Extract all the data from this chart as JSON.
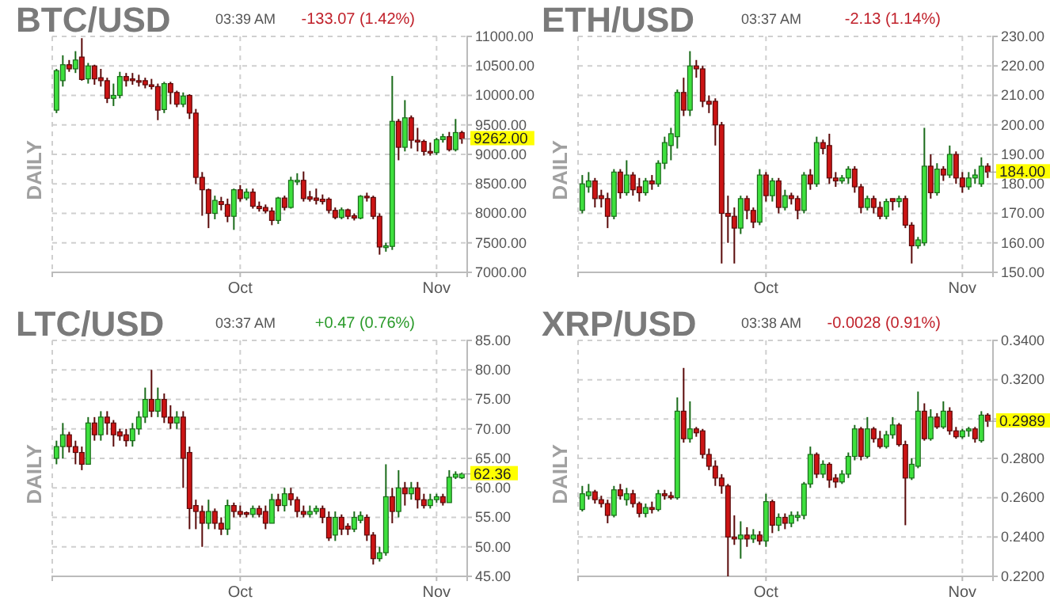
{
  "chart_data": [
    {
      "type": "candlestick",
      "title": "BTC/USD",
      "ylabel": "DAILY",
      "annotations": [
        "03:39 AM",
        "-133.07 (1.42%)",
        {
          "text": "9262.00",
          "x": "--11-05",
          "y": 9262
        }
      ],
      "grid": true,
      "xlim": [
        "--09-01T08:00",
        "--11-05T20:00"
      ],
      "xticks": [
        {
          "value": "--10-01",
          "label": "Oct"
        },
        {
          "value": "--11-01",
          "label": "Nov"
        }
      ],
      "ylim": [
        7000,
        11000
      ],
      "yticks": [
        {
          "value": 7000,
          "label": "7000.00"
        },
        {
          "value": 7500,
          "label": "7500.00"
        },
        {
          "value": 8000,
          "label": "8000.00"
        },
        {
          "value": 8500,
          "label": "8500.00"
        },
        {
          "value": 9000,
          "label": "9000.00"
        },
        {
          "value": 9500,
          "label": "9500.00"
        },
        {
          "value": 10000,
          "label": "10000.00"
        },
        {
          "value": 10500,
          "label": "10500.00"
        },
        {
          "value": 11000,
          "label": "11000.00"
        }
      ],
      "x": [
        "--09-02",
        "--09-03",
        "--09-04",
        "--09-05",
        "--09-06",
        "--09-07",
        "--09-08",
        "--09-09",
        "--09-10",
        "--09-11",
        "--09-12",
        "--09-13",
        "--09-14",
        "--09-15",
        "--09-16",
        "--09-17",
        "--09-18",
        "--09-19",
        "--09-20",
        "--09-21",
        "--09-22",
        "--09-23",
        "--09-24",
        "--09-25",
        "--09-26",
        "--09-27",
        "--09-28",
        "--09-29",
        "--09-30",
        "--10-01",
        "--10-02",
        "--10-03",
        "--10-04",
        "--10-05",
        "--10-06",
        "--10-07",
        "--10-08",
        "--10-09",
        "--10-10",
        "--10-11",
        "--10-12",
        "--10-13",
        "--10-14",
        "--10-15",
        "--10-16",
        "--10-17",
        "--10-18",
        "--10-19",
        "--10-20",
        "--10-21",
        "--10-22",
        "--10-23",
        "--10-24",
        "--10-25",
        "--10-26",
        "--10-27",
        "--10-28",
        "--10-29",
        "--10-30",
        "--10-31",
        "--11-01",
        "--11-02",
        "--11-03",
        "--11-04",
        "--11-05"
      ],
      "ohlc": [
        [
          9750,
          10450,
          9700,
          10420
        ],
        [
          10250,
          10680,
          10150,
          10520
        ],
        [
          10520,
          10600,
          10400,
          10450
        ],
        [
          10450,
          10750,
          10380,
          10600
        ],
        [
          10650,
          10970,
          10250,
          10270
        ],
        [
          10280,
          10550,
          10200,
          10500
        ],
        [
          10500,
          10520,
          10180,
          10280
        ],
        [
          10300,
          10450,
          10150,
          10250
        ],
        [
          10250,
          10300,
          9870,
          9950
        ],
        [
          9950,
          10200,
          9820,
          10000
        ],
        [
          10000,
          10400,
          9950,
          10320
        ],
        [
          10320,
          10380,
          10150,
          10250
        ],
        [
          10280,
          10380,
          10180,
          10250
        ],
        [
          10250,
          10350,
          10150,
          10240
        ],
        [
          10250,
          10300,
          10120,
          10180
        ],
        [
          10180,
          10280,
          10100,
          10150
        ],
        [
          10150,
          10200,
          9580,
          9750
        ],
        [
          9760,
          10230,
          9700,
          10200
        ],
        [
          10200,
          10230,
          9850,
          10050
        ],
        [
          10050,
          10080,
          9800,
          9850
        ],
        [
          9850,
          10050,
          9800,
          9990
        ],
        [
          10000,
          10020,
          9600,
          9700
        ],
        [
          9700,
          9770,
          8500,
          8610
        ],
        [
          8610,
          8700,
          7960,
          8400
        ],
        [
          8400,
          8420,
          7750,
          8000
        ],
        [
          8000,
          8300,
          7900,
          8220
        ],
        [
          8200,
          8280,
          8050,
          8150
        ],
        [
          8150,
          8250,
          7850,
          7950
        ],
        [
          7950,
          8420,
          7720,
          8400
        ],
        [
          8400,
          8480,
          8200,
          8250
        ],
        [
          8260,
          8420,
          8220,
          8360
        ],
        [
          8360,
          8420,
          8080,
          8120
        ],
        [
          8120,
          8200,
          8030,
          8080
        ],
        [
          8100,
          8150,
          8000,
          8040
        ],
        [
          8040,
          8100,
          7800,
          7880
        ],
        [
          7880,
          8280,
          7820,
          8260
        ],
        [
          8260,
          8300,
          8050,
          8100
        ],
        [
          8100,
          8620,
          8080,
          8560
        ],
        [
          8540,
          8680,
          8480,
          8560
        ],
        [
          8560,
          8710,
          8200,
          8250
        ],
        [
          8280,
          8380,
          8200,
          8240
        ],
        [
          8260,
          8420,
          8150,
          8220
        ],
        [
          8240,
          8320,
          8150,
          8200
        ],
        [
          8240,
          8270,
          8000,
          8050
        ],
        [
          8050,
          8100,
          7900,
          7930
        ],
        [
          7930,
          8100,
          7900,
          8060
        ],
        [
          8060,
          8080,
          7900,
          7950
        ],
        [
          7960,
          8000,
          7880,
          7920
        ],
        [
          7920,
          8310,
          7900,
          8290
        ],
        [
          8290,
          8350,
          8200,
          8270
        ],
        [
          8270,
          8300,
          7900,
          7950
        ],
        [
          7950,
          8000,
          7300,
          7430
        ],
        [
          7420,
          7500,
          7350,
          7450
        ],
        [
          7440,
          10330,
          7380,
          9560
        ],
        [
          9560,
          9600,
          8900,
          9120
        ],
        [
          9120,
          9920,
          9050,
          9620
        ],
        [
          9620,
          9660,
          9100,
          9240
        ],
        [
          9240,
          9450,
          9050,
          9210
        ],
        [
          9220,
          9250,
          8980,
          9050
        ],
        [
          9050,
          9200,
          8980,
          9030
        ],
        [
          9030,
          9280,
          8990,
          9250
        ],
        [
          9250,
          9350,
          9200,
          9300
        ],
        [
          9300,
          9380,
          9050,
          9080
        ],
        [
          9080,
          9600,
          9050,
          9370
        ],
        [
          9370,
          9400,
          9180,
          9262
        ]
      ]
    },
    {
      "type": "candlestick",
      "title": "ETH/USD",
      "ylabel": "DAILY",
      "annotations": [
        "03:37 AM",
        "-2.13 (1.14%)",
        {
          "text": "184.00",
          "x": "--11-05",
          "y": 184
        }
      ],
      "grid": true,
      "xlim": [
        "--09-01T08:00",
        "--11-05T20:00"
      ],
      "xticks": [
        {
          "value": "--10-01",
          "label": "Oct"
        },
        {
          "value": "--11-01",
          "label": "Nov"
        }
      ],
      "ylim": [
        150,
        230
      ],
      "yticks": [
        {
          "value": 150,
          "label": "150.00"
        },
        {
          "value": 160,
          "label": "160.00"
        },
        {
          "value": 170,
          "label": "170.00"
        },
        {
          "value": 180,
          "label": "180.00"
        },
        {
          "value": 190,
          "label": "190.00"
        },
        {
          "value": 200,
          "label": "200.00"
        },
        {
          "value": 210,
          "label": "210.00"
        },
        {
          "value": 220,
          "label": "220.00"
        },
        {
          "value": 230,
          "label": "230.00"
        }
      ],
      "x": [
        "--09-02",
        "--09-03",
        "--09-04",
        "--09-05",
        "--09-06",
        "--09-07",
        "--09-08",
        "--09-09",
        "--09-10",
        "--09-11",
        "--09-12",
        "--09-13",
        "--09-14",
        "--09-15",
        "--09-16",
        "--09-17",
        "--09-18",
        "--09-19",
        "--09-20",
        "--09-21",
        "--09-22",
        "--09-23",
        "--09-24",
        "--09-25",
        "--09-26",
        "--09-27",
        "--09-28",
        "--09-29",
        "--09-30",
        "--10-01",
        "--10-02",
        "--10-03",
        "--10-04",
        "--10-05",
        "--10-06",
        "--10-07",
        "--10-08",
        "--10-09",
        "--10-10",
        "--10-11",
        "--10-12",
        "--10-13",
        "--10-14",
        "--10-15",
        "--10-16",
        "--10-17",
        "--10-18",
        "--10-19",
        "--10-20",
        "--10-21",
        "--10-22",
        "--10-23",
        "--10-24",
        "--10-25",
        "--10-26",
        "--10-27",
        "--10-28",
        "--10-29",
        "--10-30",
        "--10-31",
        "--11-01",
        "--11-02",
        "--11-03",
        "--11-04",
        "--11-05"
      ],
      "ohlc": [
        [
          171,
          183,
          170,
          180
        ],
        [
          179,
          184,
          177,
          181
        ],
        [
          181,
          182,
          172,
          175
        ],
        [
          176,
          178,
          172,
          175
        ],
        [
          175,
          177,
          165,
          169
        ],
        [
          169,
          185,
          168,
          184
        ],
        [
          184,
          185,
          175,
          177
        ],
        [
          177,
          188,
          176,
          183
        ],
        [
          183,
          184,
          176,
          178
        ],
        [
          179,
          182,
          174,
          177
        ],
        [
          177,
          182,
          176,
          181
        ],
        [
          181,
          183,
          178,
          180
        ],
        [
          180,
          188,
          179,
          187
        ],
        [
          187,
          196,
          185,
          194
        ],
        [
          193,
          199,
          188,
          197
        ],
        [
          196,
          212,
          192,
          211
        ],
        [
          211,
          216,
          203,
          205
        ],
        [
          205,
          225,
          203,
          220
        ],
        [
          220,
          222,
          216,
          219
        ],
        [
          219,
          220,
          206,
          208
        ],
        [
          208,
          210,
          204,
          207
        ],
        [
          208,
          209,
          193,
          200
        ],
        [
          200,
          201,
          153,
          170
        ],
        [
          170,
          176,
          160,
          169
        ],
        [
          169,
          172,
          153,
          165
        ],
        [
          165,
          176,
          163,
          175
        ],
        [
          175,
          176,
          168,
          171
        ],
        [
          171,
          172,
          165,
          167
        ],
        [
          167,
          185,
          166,
          183
        ],
        [
          183,
          184,
          174,
          176
        ],
        [
          176,
          182,
          174,
          181
        ],
        [
          181,
          182,
          170,
          172
        ],
        [
          172,
          178,
          171,
          176
        ],
        [
          176,
          177,
          173,
          175
        ],
        [
          175,
          176,
          168,
          171
        ],
        [
          171,
          184,
          170,
          183
        ],
        [
          183,
          185,
          178,
          180
        ],
        [
          180,
          196,
          179,
          194
        ],
        [
          194,
          195,
          190,
          192
        ],
        [
          193,
          197,
          180,
          182
        ],
        [
          182,
          184,
          179,
          181
        ],
        [
          181,
          183,
          180,
          182
        ],
        [
          182,
          186,
          180,
          185
        ],
        [
          185,
          186,
          177,
          179
        ],
        [
          179,
          180,
          170,
          172
        ],
        [
          172,
          176,
          171,
          175
        ],
        [
          175,
          176,
          170,
          172
        ],
        [
          172,
          174,
          168,
          169
        ],
        [
          169,
          175,
          168,
          174
        ],
        [
          175,
          175,
          171,
          174
        ],
        [
          174,
          176,
          172,
          175
        ],
        [
          175,
          176,
          165,
          166
        ],
        [
          166,
          167,
          153,
          159
        ],
        [
          159,
          162,
          158,
          161
        ],
        [
          160,
          199,
          159,
          186
        ],
        [
          186,
          190,
          175,
          177
        ],
        [
          177,
          187,
          176,
          185
        ],
        [
          185,
          186,
          181,
          183
        ],
        [
          183,
          193,
          182,
          190
        ],
        [
          190,
          191,
          180,
          182
        ],
        [
          182,
          184,
          177,
          179
        ],
        [
          179,
          184,
          178,
          182
        ],
        [
          182,
          185,
          180,
          183
        ],
        [
          180,
          189,
          179,
          186
        ],
        [
          186,
          187,
          182,
          184
        ]
      ]
    },
    {
      "type": "candlestick",
      "title": "LTC/USD",
      "ylabel": "DAILY",
      "annotations": [
        "03:37 AM",
        "+0.47 (0.76%)",
        {
          "text": "62.36",
          "x": "--11-05",
          "y": 62.36
        }
      ],
      "grid": true,
      "xlim": [
        "--09-01T08:00",
        "--11-05T20:00"
      ],
      "xticks": [
        {
          "value": "--10-01",
          "label": "Oct"
        },
        {
          "value": "--11-01",
          "label": "Nov"
        }
      ],
      "ylim": [
        45,
        85
      ],
      "yticks": [
        {
          "value": 45,
          "label": "45.00"
        },
        {
          "value": 50,
          "label": "50.00"
        },
        {
          "value": 55,
          "label": "55.00"
        },
        {
          "value": 60,
          "label": "60.00"
        },
        {
          "value": 65,
          "label": "65.00"
        },
        {
          "value": 70,
          "label": "70.00"
        },
        {
          "value": 75,
          "label": "75.00"
        },
        {
          "value": 80,
          "label": "80.00"
        },
        {
          "value": 85,
          "label": "85.00"
        }
      ],
      "x": [
        "--09-02",
        "--09-03",
        "--09-04",
        "--09-05",
        "--09-06",
        "--09-07",
        "--09-08",
        "--09-09",
        "--09-10",
        "--09-11",
        "--09-12",
        "--09-13",
        "--09-14",
        "--09-15",
        "--09-16",
        "--09-17",
        "--09-18",
        "--09-19",
        "--09-20",
        "--09-21",
        "--09-22",
        "--09-23",
        "--09-24",
        "--09-25",
        "--09-26",
        "--09-27",
        "--09-28",
        "--09-29",
        "--09-30",
        "--10-01",
        "--10-02",
        "--10-03",
        "--10-04",
        "--10-05",
        "--10-06",
        "--10-07",
        "--10-08",
        "--10-09",
        "--10-10",
        "--10-11",
        "--10-12",
        "--10-13",
        "--10-14",
        "--10-15",
        "--10-16",
        "--10-17",
        "--10-18",
        "--10-19",
        "--10-20",
        "--10-21",
        "--10-22",
        "--10-23",
        "--10-24",
        "--10-25",
        "--10-26",
        "--10-27",
        "--10-28",
        "--10-29",
        "--10-30",
        "--10-31",
        "--11-01",
        "--11-02",
        "--11-03",
        "--11-04",
        "--11-05"
      ],
      "ohlc": [
        [
          65,
          68,
          64,
          67
        ],
        [
          67,
          71,
          65,
          69
        ],
        [
          69,
          69.5,
          66,
          67
        ],
        [
          67,
          68,
          64,
          66
        ],
        [
          66,
          67,
          63,
          64
        ],
        [
          64,
          72,
          64,
          71
        ],
        [
          71,
          72,
          68,
          69
        ],
        [
          69,
          73,
          68,
          72
        ],
        [
          72,
          73,
          69,
          71
        ],
        [
          71,
          71.5,
          67,
          69
        ],
        [
          69.5,
          70,
          68,
          68.8
        ],
        [
          69,
          70,
          67,
          68
        ],
        [
          68,
          71,
          67,
          70
        ],
        [
          70,
          73,
          69,
          72
        ],
        [
          72,
          77,
          71,
          75
        ],
        [
          75,
          80,
          72,
          73
        ],
        [
          73,
          77,
          72,
          75
        ],
        [
          75,
          76,
          71,
          72
        ],
        [
          72,
          74,
          70,
          71
        ],
        [
          71,
          73,
          70,
          72
        ],
        [
          72,
          73,
          60,
          65
        ],
        [
          66,
          67,
          53,
          56.5
        ],
        [
          57,
          58,
          53,
          56
        ],
        [
          56,
          57,
          50,
          54
        ],
        [
          54,
          58,
          53,
          56
        ],
        [
          56,
          56.5,
          53,
          54
        ],
        [
          54,
          55,
          52,
          53
        ],
        [
          53,
          58,
          52,
          57
        ],
        [
          57,
          57.5,
          55,
          56
        ],
        [
          56,
          57,
          55,
          55.5
        ],
        [
          55.8,
          56,
          55,
          55.5
        ],
        [
          55.5,
          57,
          55,
          56.5
        ],
        [
          56.5,
          57,
          55,
          55.5
        ],
        [
          56,
          57,
          53,
          54
        ],
        [
          54,
          59,
          54,
          58
        ],
        [
          58,
          59,
          56,
          57
        ],
        [
          57,
          60,
          56,
          59
        ],
        [
          59,
          60,
          57,
          58
        ],
        [
          58,
          58.5,
          55,
          56
        ],
        [
          56,
          57,
          55,
          55.5
        ],
        [
          55.5,
          57,
          55,
          56
        ],
        [
          56,
          57,
          55.5,
          56.5
        ],
        [
          56.5,
          57,
          54,
          55
        ],
        [
          55,
          56,
          51,
          51.5
        ],
        [
          52,
          56,
          51,
          55
        ],
        [
          55,
          55.5,
          52,
          53
        ],
        [
          53.5,
          54,
          52,
          53
        ],
        [
          53,
          56,
          52.5,
          55
        ],
        [
          54.5,
          56,
          54,
          55.3
        ],
        [
          55,
          55.5,
          51,
          52
        ],
        [
          52,
          52.5,
          47,
          48
        ],
        [
          48,
          50,
          47.5,
          49
        ],
        [
          49,
          64,
          48.5,
          58.5
        ],
        [
          58.5,
          60,
          54,
          56
        ],
        [
          56,
          63,
          55,
          60
        ],
        [
          60,
          61,
          57,
          59
        ],
        [
          59,
          61,
          58,
          60
        ],
        [
          60,
          61,
          56.5,
          58
        ],
        [
          58,
          59,
          56.5,
          57
        ],
        [
          57,
          59,
          56.5,
          58
        ],
        [
          58,
          59,
          57.5,
          58.5
        ],
        [
          58.5,
          59,
          57,
          57.5
        ],
        [
          57.5,
          63,
          57.5,
          61.8
        ],
        [
          61.8,
          62.8,
          61.5,
          62.3
        ],
        [
          61.7,
          62.6,
          61.5,
          62.36
        ]
      ]
    },
    {
      "type": "candlestick",
      "title": "XRP/USD",
      "ylabel": "DAILY",
      "annotations": [
        "03:38 AM",
        "-0.0028 (0.91%)",
        {
          "text": "0.2989",
          "x": "--11-05",
          "y": 0.2989
        }
      ],
      "grid": true,
      "xlim": [
        "--09-01T08:00",
        "--11-05T20:00"
      ],
      "xticks": [
        {
          "value": "--10-01",
          "label": "Oct"
        },
        {
          "value": "--11-01",
          "label": "Nov"
        }
      ],
      "ylim": [
        0.22,
        0.34
      ],
      "yticks": [
        {
          "value": 0.22,
          "label": "0.2200"
        },
        {
          "value": 0.24,
          "label": "0.2400"
        },
        {
          "value": 0.26,
          "label": "0.2600"
        },
        {
          "value": 0.28,
          "label": "0.2800"
        },
        {
          "value": 0.3,
          "label": null
        },
        {
          "value": 0.32,
          "label": "0.3200"
        },
        {
          "value": 0.34,
          "label": "0.3400"
        }
      ],
      "x": [
        "--09-02",
        "--09-03",
        "--09-04",
        "--09-05",
        "--09-06",
        "--09-07",
        "--09-08",
        "--09-09",
        "--09-10",
        "--09-11",
        "--09-12",
        "--09-13",
        "--09-14",
        "--09-15",
        "--09-16",
        "--09-17",
        "--09-18",
        "--09-19",
        "--09-20",
        "--09-21",
        "--09-22",
        "--09-23",
        "--09-24",
        "--09-25",
        "--09-26",
        "--09-27",
        "--09-28",
        "--09-29",
        "--09-30",
        "--10-01",
        "--10-02",
        "--10-03",
        "--10-04",
        "--10-05",
        "--10-06",
        "--10-07",
        "--10-08",
        "--10-09",
        "--10-10",
        "--10-11",
        "--10-12",
        "--10-13",
        "--10-14",
        "--10-15",
        "--10-16",
        "--10-17",
        "--10-18",
        "--10-19",
        "--10-20",
        "--10-21",
        "--10-22",
        "--10-23",
        "--10-24",
        "--10-25",
        "--10-26",
        "--10-27",
        "--10-28",
        "--10-29",
        "--10-30",
        "--10-31",
        "--11-01",
        "--11-02",
        "--11-03",
        "--11-04",
        "--11-05"
      ],
      "ohlc": [
        [
          0.254,
          0.266,
          0.253,
          0.262
        ],
        [
          0.261,
          0.267,
          0.259,
          0.263
        ],
        [
          0.263,
          0.264,
          0.257,
          0.259
        ],
        [
          0.259,
          0.261,
          0.255,
          0.257
        ],
        [
          0.257,
          0.259,
          0.247,
          0.251
        ],
        [
          0.251,
          0.266,
          0.25,
          0.264
        ],
        [
          0.264,
          0.267,
          0.259,
          0.261
        ],
        [
          0.259,
          0.265,
          0.256,
          0.262
        ],
        [
          0.262,
          0.264,
          0.255,
          0.257
        ],
        [
          0.257,
          0.258,
          0.25,
          0.252
        ],
        [
          0.252,
          0.257,
          0.25,
          0.255
        ],
        [
          0.255,
          0.258,
          0.252,
          0.254
        ],
        [
          0.254,
          0.264,
          0.253,
          0.262
        ],
        [
          0.262,
          0.264,
          0.259,
          0.261
        ],
        [
          0.261,
          0.263,
          0.259,
          0.26
        ],
        [
          0.26,
          0.311,
          0.259,
          0.304
        ],
        [
          0.304,
          0.326,
          0.288,
          0.29
        ],
        [
          0.29,
          0.309,
          0.288,
          0.295
        ],
        [
          0.295,
          0.296,
          0.291,
          0.293
        ],
        [
          0.294,
          0.295,
          0.28,
          0.282
        ],
        [
          0.282,
          0.285,
          0.274,
          0.276
        ],
        [
          0.276,
          0.279,
          0.266,
          0.27
        ],
        [
          0.27,
          0.272,
          0.262,
          0.266
        ],
        [
          0.266,
          0.267,
          0.22,
          0.24
        ],
        [
          0.24,
          0.251,
          0.236,
          0.239
        ],
        [
          0.239,
          0.248,
          0.229,
          0.241
        ],
        [
          0.241,
          0.245,
          0.235,
          0.239
        ],
        [
          0.239,
          0.244,
          0.237,
          0.241
        ],
        [
          0.241,
          0.243,
          0.236,
          0.238
        ],
        [
          0.238,
          0.262,
          0.235,
          0.258
        ],
        [
          0.258,
          0.259,
          0.242,
          0.246
        ],
        [
          0.246,
          0.252,
          0.243,
          0.25
        ],
        [
          0.25,
          0.252,
          0.244,
          0.247
        ],
        [
          0.247,
          0.253,
          0.245,
          0.251
        ],
        [
          0.25,
          0.253,
          0.248,
          0.251
        ],
        [
          0.251,
          0.268,
          0.249,
          0.267
        ],
        [
          0.267,
          0.286,
          0.265,
          0.282
        ],
        [
          0.282,
          0.283,
          0.27,
          0.272
        ],
        [
          0.272,
          0.279,
          0.27,
          0.277
        ],
        [
          0.277,
          0.278,
          0.265,
          0.269
        ],
        [
          0.27,
          0.272,
          0.265,
          0.268
        ],
        [
          0.268,
          0.274,
          0.267,
          0.272
        ],
        [
          0.272,
          0.283,
          0.27,
          0.281
        ],
        [
          0.281,
          0.297,
          0.279,
          0.295
        ],
        [
          0.295,
          0.296,
          0.279,
          0.281
        ],
        [
          0.281,
          0.301,
          0.28,
          0.295
        ],
        [
          0.295,
          0.296,
          0.288,
          0.29
        ],
        [
          0.29,
          0.294,
          0.285,
          0.286
        ],
        [
          0.286,
          0.294,
          0.285,
          0.292
        ],
        [
          0.292,
          0.301,
          0.29,
          0.297
        ],
        [
          0.297,
          0.298,
          0.286,
          0.287
        ],
        [
          0.287,
          0.289,
          0.246,
          0.27
        ],
        [
          0.27,
          0.28,
          0.269,
          0.277
        ],
        [
          0.276,
          0.314,
          0.275,
          0.304
        ],
        [
          0.304,
          0.308,
          0.289,
          0.29
        ],
        [
          0.29,
          0.305,
          0.289,
          0.301
        ],
        [
          0.301,
          0.303,
          0.295,
          0.296
        ],
        [
          0.296,
          0.309,
          0.295,
          0.304
        ],
        [
          0.304,
          0.306,
          0.292,
          0.294
        ],
        [
          0.294,
          0.296,
          0.29,
          0.291
        ],
        [
          0.291,
          0.295,
          0.29,
          0.294
        ],
        [
          0.294,
          0.296,
          0.291,
          0.295
        ],
        [
          0.295,
          0.296,
          0.288,
          0.29
        ],
        [
          0.289,
          0.304,
          0.288,
          0.302
        ],
        [
          0.302,
          0.303,
          0.296,
          0.2989
        ]
      ]
    }
  ]
}
